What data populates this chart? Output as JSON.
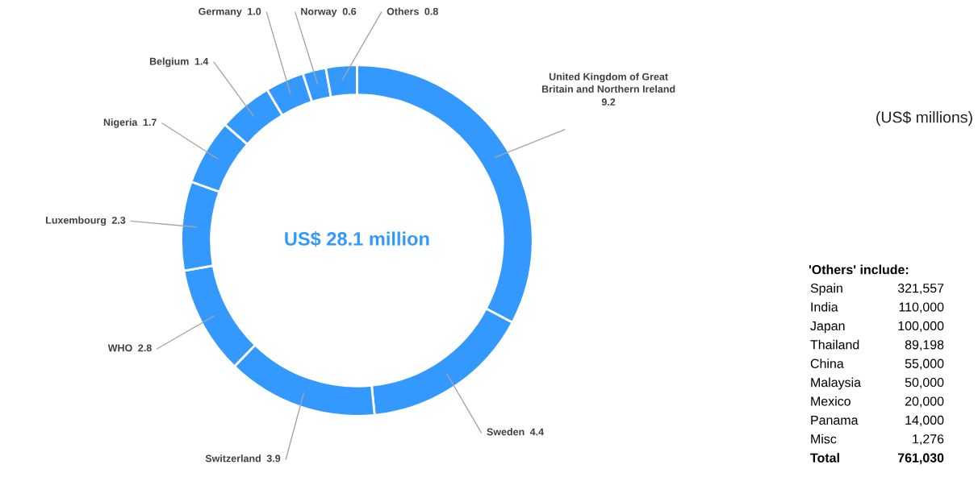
{
  "chart_data": {
    "type": "donut",
    "categories": [
      "United Kingdom of Great\nBritain and Northern Ireland",
      "Sweden",
      "Switzerland",
      "WHO",
      "Luxembourg",
      "Nigeria",
      "Belgium",
      "Germany",
      "Norway",
      "Others"
    ],
    "values": [
      9.2,
      4.4,
      3.9,
      2.8,
      2.3,
      1.7,
      1.4,
      1.0,
      0.6,
      0.8
    ],
    "colors": [
      "#3399ff",
      "#3399ff",
      "#3399ff",
      "#3399ff",
      "#3399ff",
      "#3399ff",
      "#3399ff",
      "#3399ff",
      "#3399ff",
      "#3399ff"
    ],
    "value_labels": [
      "9.2",
      "4.4",
      "3.9",
      "2.8",
      "2.3",
      "1.7",
      "1.4",
      "1.0",
      "0.6",
      "0.8"
    ],
    "annotations": [
      "US$ 28.1 million",
      "(US$ millions)",
      "'Others' include:",
      "Spain 321,557",
      "India 110,000",
      "Japan 100,000",
      "Thailand 89,198",
      "China 55,000",
      "Malaysia 50,000",
      "Mexico 20,000",
      "Panama 14,000",
      "Misc 1,276",
      "Total 761,030"
    ]
  }
}
